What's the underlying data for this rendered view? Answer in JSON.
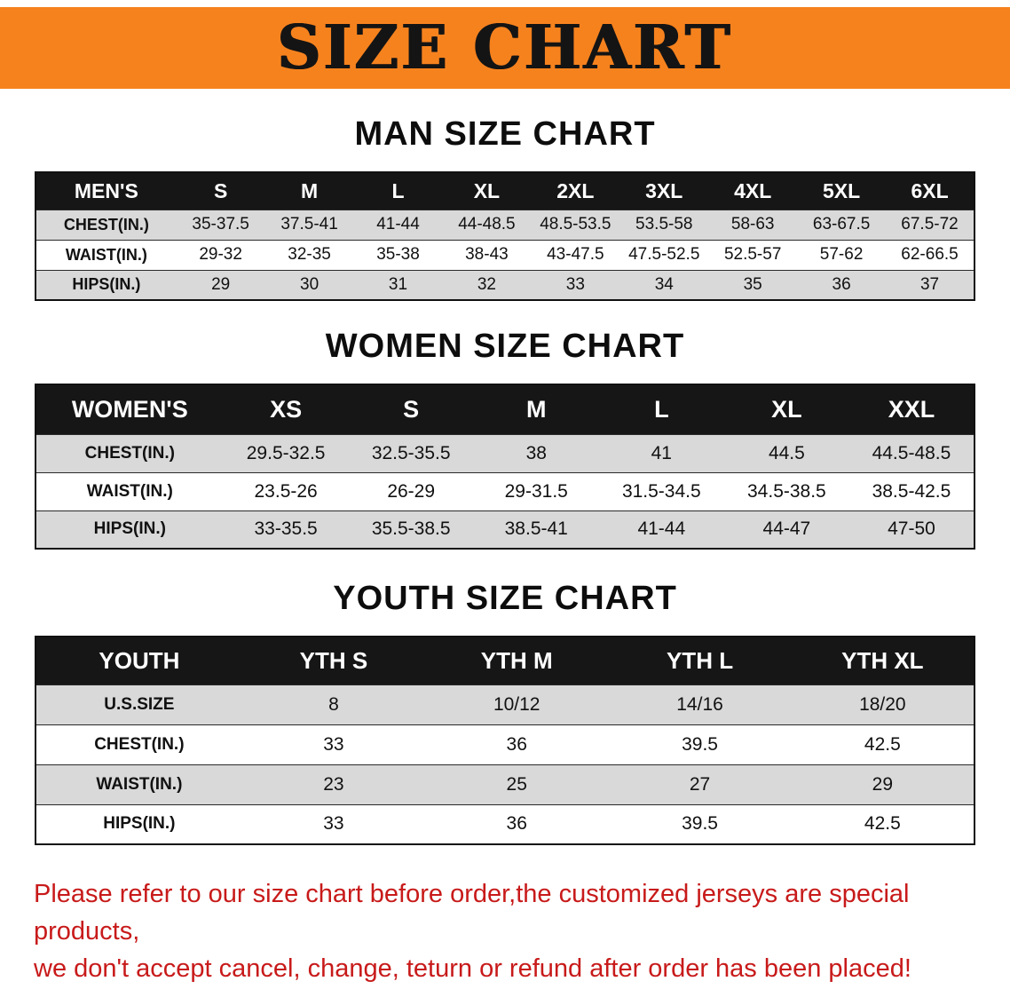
{
  "banner": {
    "title": "SIZE CHART",
    "bg_color": "#F6821E",
    "text_color": "#141414"
  },
  "colors": {
    "table_header_bg": "#161616",
    "table_header_text": "#ffffff",
    "alt_row_bg": "#d9d9d9",
    "notice_text": "#C81A1A"
  },
  "sections": [
    {
      "heading": "MAN SIZE CHART",
      "table": {
        "header": [
          "MEN'S",
          "S",
          "M",
          "L",
          "XL",
          "2XL",
          "3XL",
          "4XL",
          "5XL",
          "6XL"
        ],
        "rows": [
          {
            "label": "CHEST(IN.)",
            "values": [
              "35-37.5",
              "37.5-41",
              "41-44",
              "44-48.5",
              "48.5-53.5",
              "53.5-58",
              "58-63",
              "63-67.5",
              "67.5-72"
            ]
          },
          {
            "label": "WAIST(IN.)",
            "values": [
              "29-32",
              "32-35",
              "35-38",
              "38-43",
              "43-47.5",
              "47.5-52.5",
              "52.5-57",
              "57-62",
              "62-66.5"
            ]
          },
          {
            "label": "HIPS(IN.)",
            "values": [
              "29",
              "30",
              "31",
              "32",
              "33",
              "34",
              "35",
              "36",
              "37"
            ]
          }
        ]
      }
    },
    {
      "heading": "WOMEN SIZE CHART",
      "table": {
        "header": [
          "WOMEN'S",
          "XS",
          "S",
          "M",
          "L",
          "XL",
          "XXL"
        ],
        "rows": [
          {
            "label": "CHEST(IN.)",
            "values": [
              "29.5-32.5",
              "32.5-35.5",
              "38",
              "41",
              "44.5",
              "44.5-48.5"
            ]
          },
          {
            "label": "WAIST(IN.)",
            "values": [
              "23.5-26",
              "26-29",
              "29-31.5",
              "31.5-34.5",
              "34.5-38.5",
              "38.5-42.5"
            ]
          },
          {
            "label": "HIPS(IN.)",
            "values": [
              "33-35.5",
              "35.5-38.5",
              "38.5-41",
              "41-44",
              "44-47",
              "47-50"
            ]
          }
        ]
      }
    },
    {
      "heading": "YOUTH SIZE CHART",
      "table": {
        "header": [
          "YOUTH",
          "YTH S",
          "YTH M",
          "YTH L",
          "YTH XL"
        ],
        "rows": [
          {
            "label": "U.S.SIZE",
            "values": [
              "8",
              "10/12",
              "14/16",
              "18/20"
            ]
          },
          {
            "label": "CHEST(IN.)",
            "values": [
              "33",
              "36",
              "39.5",
              "42.5"
            ]
          },
          {
            "label": "WAIST(IN.)",
            "values": [
              "23",
              "25",
              "27",
              "29"
            ]
          },
          {
            "label": "HIPS(IN.)",
            "values": [
              "33",
              "36",
              "39.5",
              "42.5"
            ]
          }
        ]
      }
    }
  ],
  "footer": {
    "lines": [
      "Please refer to our size chart before order,the customized jerseys are special products,",
      "we don't accept cancel, change, teturn or refund after order has been placed!"
    ]
  }
}
